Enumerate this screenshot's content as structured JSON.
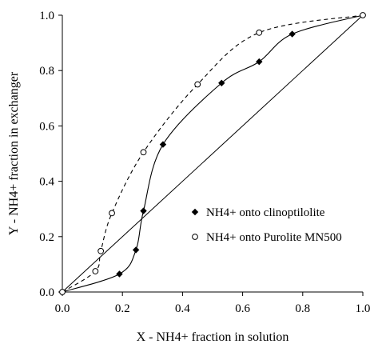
{
  "chart_data": {
    "type": "scatter",
    "title": "",
    "xlabel": "X - NH4+ fraction in solution",
    "ylabel": "Y - NH4+ fraction in exchanger",
    "xlim": [
      0,
      1
    ],
    "ylim": [
      0,
      1
    ],
    "x_ticks": [
      "0.0",
      "0.2",
      "0.4",
      "0.6",
      "0.8",
      "1.0"
    ],
    "y_ticks": [
      "0.0",
      "0.2",
      "0.4",
      "0.6",
      "0.8",
      "1.0"
    ],
    "grid": false,
    "legend_position": "center-right",
    "series": [
      {
        "name": "NH4+ onto clinoptilolite",
        "marker": "filled-diamond",
        "line": "solid smoothed curve",
        "color": "#000000",
        "points": [
          {
            "x": 0.0,
            "y": 0.0
          },
          {
            "x": 0.19,
            "y": 0.065
          },
          {
            "x": 0.245,
            "y": 0.152
          },
          {
            "x": 0.27,
            "y": 0.293
          },
          {
            "x": 0.335,
            "y": 0.533
          },
          {
            "x": 0.53,
            "y": 0.755
          },
          {
            "x": 0.655,
            "y": 0.832
          },
          {
            "x": 0.765,
            "y": 0.932
          },
          {
            "x": 1.0,
            "y": 1.0
          }
        ]
      },
      {
        "name": "NH4+ onto Purolite MN500",
        "marker": "open-circle",
        "line": "dashed smoothed curve",
        "color": "#000000",
        "points": [
          {
            "x": 0.0,
            "y": 0.0
          },
          {
            "x": 0.11,
            "y": 0.075
          },
          {
            "x": 0.128,
            "y": 0.148
          },
          {
            "x": 0.165,
            "y": 0.285
          },
          {
            "x": 0.27,
            "y": 0.505
          },
          {
            "x": 0.45,
            "y": 0.75
          },
          {
            "x": 0.655,
            "y": 0.937
          },
          {
            "x": 1.0,
            "y": 1.0
          }
        ]
      }
    ],
    "reference_line": {
      "from": [
        0,
        0
      ],
      "to": [
        1,
        1
      ],
      "style": "solid"
    }
  }
}
